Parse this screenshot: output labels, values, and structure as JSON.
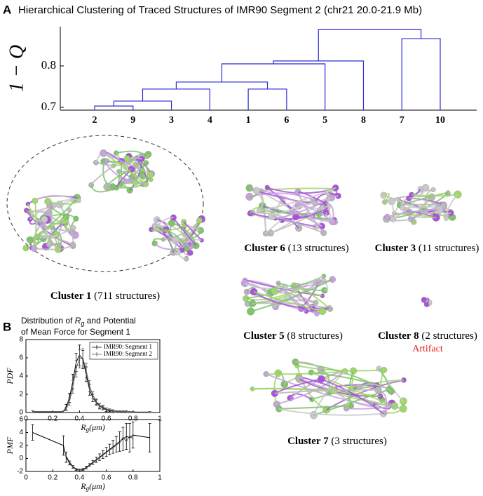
{
  "panel_a": {
    "label": "A",
    "title": "Hierarchical Clustering of Traced Structures of IMR90 Segment 2 (chr21 20.0-21.9 Mb)"
  },
  "panel_b": {
    "label": "B",
    "title": [
      "Distribution of ",
      "R",
      "g",
      " and Potential",
      "of Mean Force for Segment 1"
    ]
  },
  "chart_data": [
    {
      "type": "dendrogram",
      "ylabel": "1 − Q",
      "ylim": [
        0.693,
        0.895
      ],
      "yticks": [
        0.7,
        0.8
      ],
      "leaves": [
        "2",
        "9",
        "3",
        "4",
        "1",
        "6",
        "5",
        "8",
        "7",
        "10"
      ],
      "color": "#2b2bd6",
      "merges": [
        {
          "left": 0,
          "right": 1,
          "height": 0.703
        },
        {
          "left": 10,
          "right": 2,
          "height": 0.715
        },
        {
          "left": 11,
          "right": 3,
          "height": 0.744
        },
        {
          "left": 4,
          "right": 5,
          "height": 0.744
        },
        {
          "left": 12,
          "right": 13,
          "height": 0.761
        },
        {
          "left": 14,
          "right": 6,
          "height": 0.805
        },
        {
          "left": 15,
          "right": 7,
          "height": 0.812
        },
        {
          "left": 8,
          "right": 9,
          "height": 0.866
        },
        {
          "left": 16,
          "right": 17,
          "height": 0.888
        }
      ]
    },
    {
      "type": "errorline",
      "ylabel": "PDF",
      "xlabel": [
        "R",
        "g",
        "(μm)"
      ],
      "xlim": [
        0,
        1
      ],
      "xticks": [
        0,
        0.2,
        0.4,
        0.6,
        0.8,
        1
      ],
      "ylim": [
        0,
        8
      ],
      "yticks": [
        0,
        2,
        4,
        6,
        8
      ],
      "x": [
        0.05,
        0.28,
        0.3,
        0.325,
        0.35,
        0.375,
        0.4,
        0.425,
        0.45,
        0.475,
        0.5,
        0.525,
        0.55,
        0.575,
        0.6,
        0.625,
        0.65,
        0.675,
        0.7,
        0.725,
        0.75,
        0.775,
        0.8,
        0.925
      ],
      "legend": "upper right",
      "series": [
        {
          "name": "IMR90: Segment 1",
          "color": "#000000",
          "values": [
            0.1,
            0.1,
            0.6,
            1.6,
            3.4,
            5.5,
            6.3,
            5.8,
            4.2,
            2.5,
            1.6,
            1.1,
            0.7,
            0.5,
            0.3,
            0.2,
            0.2,
            0.1,
            0.1,
            0.1,
            0.1,
            0.05,
            0.05,
            0.05
          ],
          "errors": [
            0.1,
            0.1,
            0.3,
            0.5,
            0.8,
            1.0,
            1.1,
            1.0,
            0.8,
            0.6,
            0.4,
            0.3,
            0.3,
            0.2,
            0.2,
            0.1,
            0.1,
            0.1,
            0.1,
            0.1,
            0.1,
            0.05,
            0.05,
            0.05
          ]
        },
        {
          "name": "IMR90: Segment 2",
          "color": "#555555",
          "values": [
            0.1,
            0.1,
            0.4,
            1.2,
            2.8,
            4.8,
            5.9,
            6.0,
            4.6,
            2.9,
            1.9,
            1.2,
            0.8,
            0.6,
            0.4,
            0.3,
            0.2,
            0.1,
            0.1,
            0.1,
            0.1,
            0.05,
            0.05,
            0.05
          ],
          "errors": [
            0.1,
            0.1,
            0.2,
            0.4,
            0.7,
            0.9,
            1.0,
            1.0,
            0.8,
            0.6,
            0.4,
            0.3,
            0.2,
            0.2,
            0.1,
            0.1,
            0.1,
            0.1,
            0.1,
            0.1,
            0.1,
            0.05,
            0.05,
            0.05
          ]
        }
      ]
    },
    {
      "type": "errorline",
      "ylabel": "PMF",
      "xlabel": [
        "R",
        "g",
        "(μm)"
      ],
      "xlim": [
        0,
        1
      ],
      "xticks": [
        0,
        0.2,
        0.4,
        0.6,
        0.8,
        1
      ],
      "ylim": [
        -2,
        6
      ],
      "yticks": [
        -2,
        0,
        2,
        4,
        6
      ],
      "x": [
        0.05,
        0.28,
        0.3,
        0.325,
        0.35,
        0.375,
        0.4,
        0.425,
        0.45,
        0.475,
        0.5,
        0.525,
        0.55,
        0.575,
        0.6,
        0.625,
        0.65,
        0.675,
        0.7,
        0.725,
        0.75,
        0.775,
        0.8,
        0.925
      ],
      "series": [
        {
          "name": "IMR90: Segment 1",
          "color": "#000000",
          "values": [
            4,
            2,
            0.2,
            -0.7,
            -1.3,
            -1.7,
            -1.8,
            -1.7,
            -1.4,
            -1.0,
            -0.6,
            -0.2,
            0.2,
            0.6,
            1.0,
            1.4,
            1.8,
            2.2,
            2.6,
            3.0,
            3.4,
            3.2,
            3.6,
            3.2
          ],
          "errors": [
            1.2,
            1.5,
            0.8,
            0.3,
            0.2,
            0.15,
            0.15,
            0.15,
            0.2,
            0.2,
            0.3,
            0.4,
            0.5,
            0.6,
            0.7,
            0.8,
            1.0,
            1.2,
            1.5,
            1.8,
            2.0,
            2.2,
            2.0,
            2.2
          ]
        },
        {
          "name": "IMR90: Segment 2",
          "color": "#555555",
          "values": [
            null,
            1.5,
            0.4,
            -0.5,
            -1.2,
            -1.6,
            -1.8,
            -1.8,
            -1.5,
            -1.1,
            -0.7,
            -0.3,
            0.1,
            0.5,
            0.9,
            1.3,
            1.6,
            2.1,
            2.4,
            3.3,
            2.6,
            3.5,
            3.0,
            null
          ]
        }
      ]
    }
  ],
  "clusters": [
    {
      "name": "Cluster 1",
      "count": " (711 structures)"
    },
    {
      "name": "Cluster 6",
      "count": " (13 structures)"
    },
    {
      "name": "Cluster 3",
      "count": " (11 structures)"
    },
    {
      "name": "Cluster 5",
      "count": " (8 structures)"
    },
    {
      "name": "Cluster 8",
      "count": " (2 structures)",
      "note": "Artifact"
    },
    {
      "name": "Cluster 7",
      "count": " (3 structures)"
    }
  ]
}
